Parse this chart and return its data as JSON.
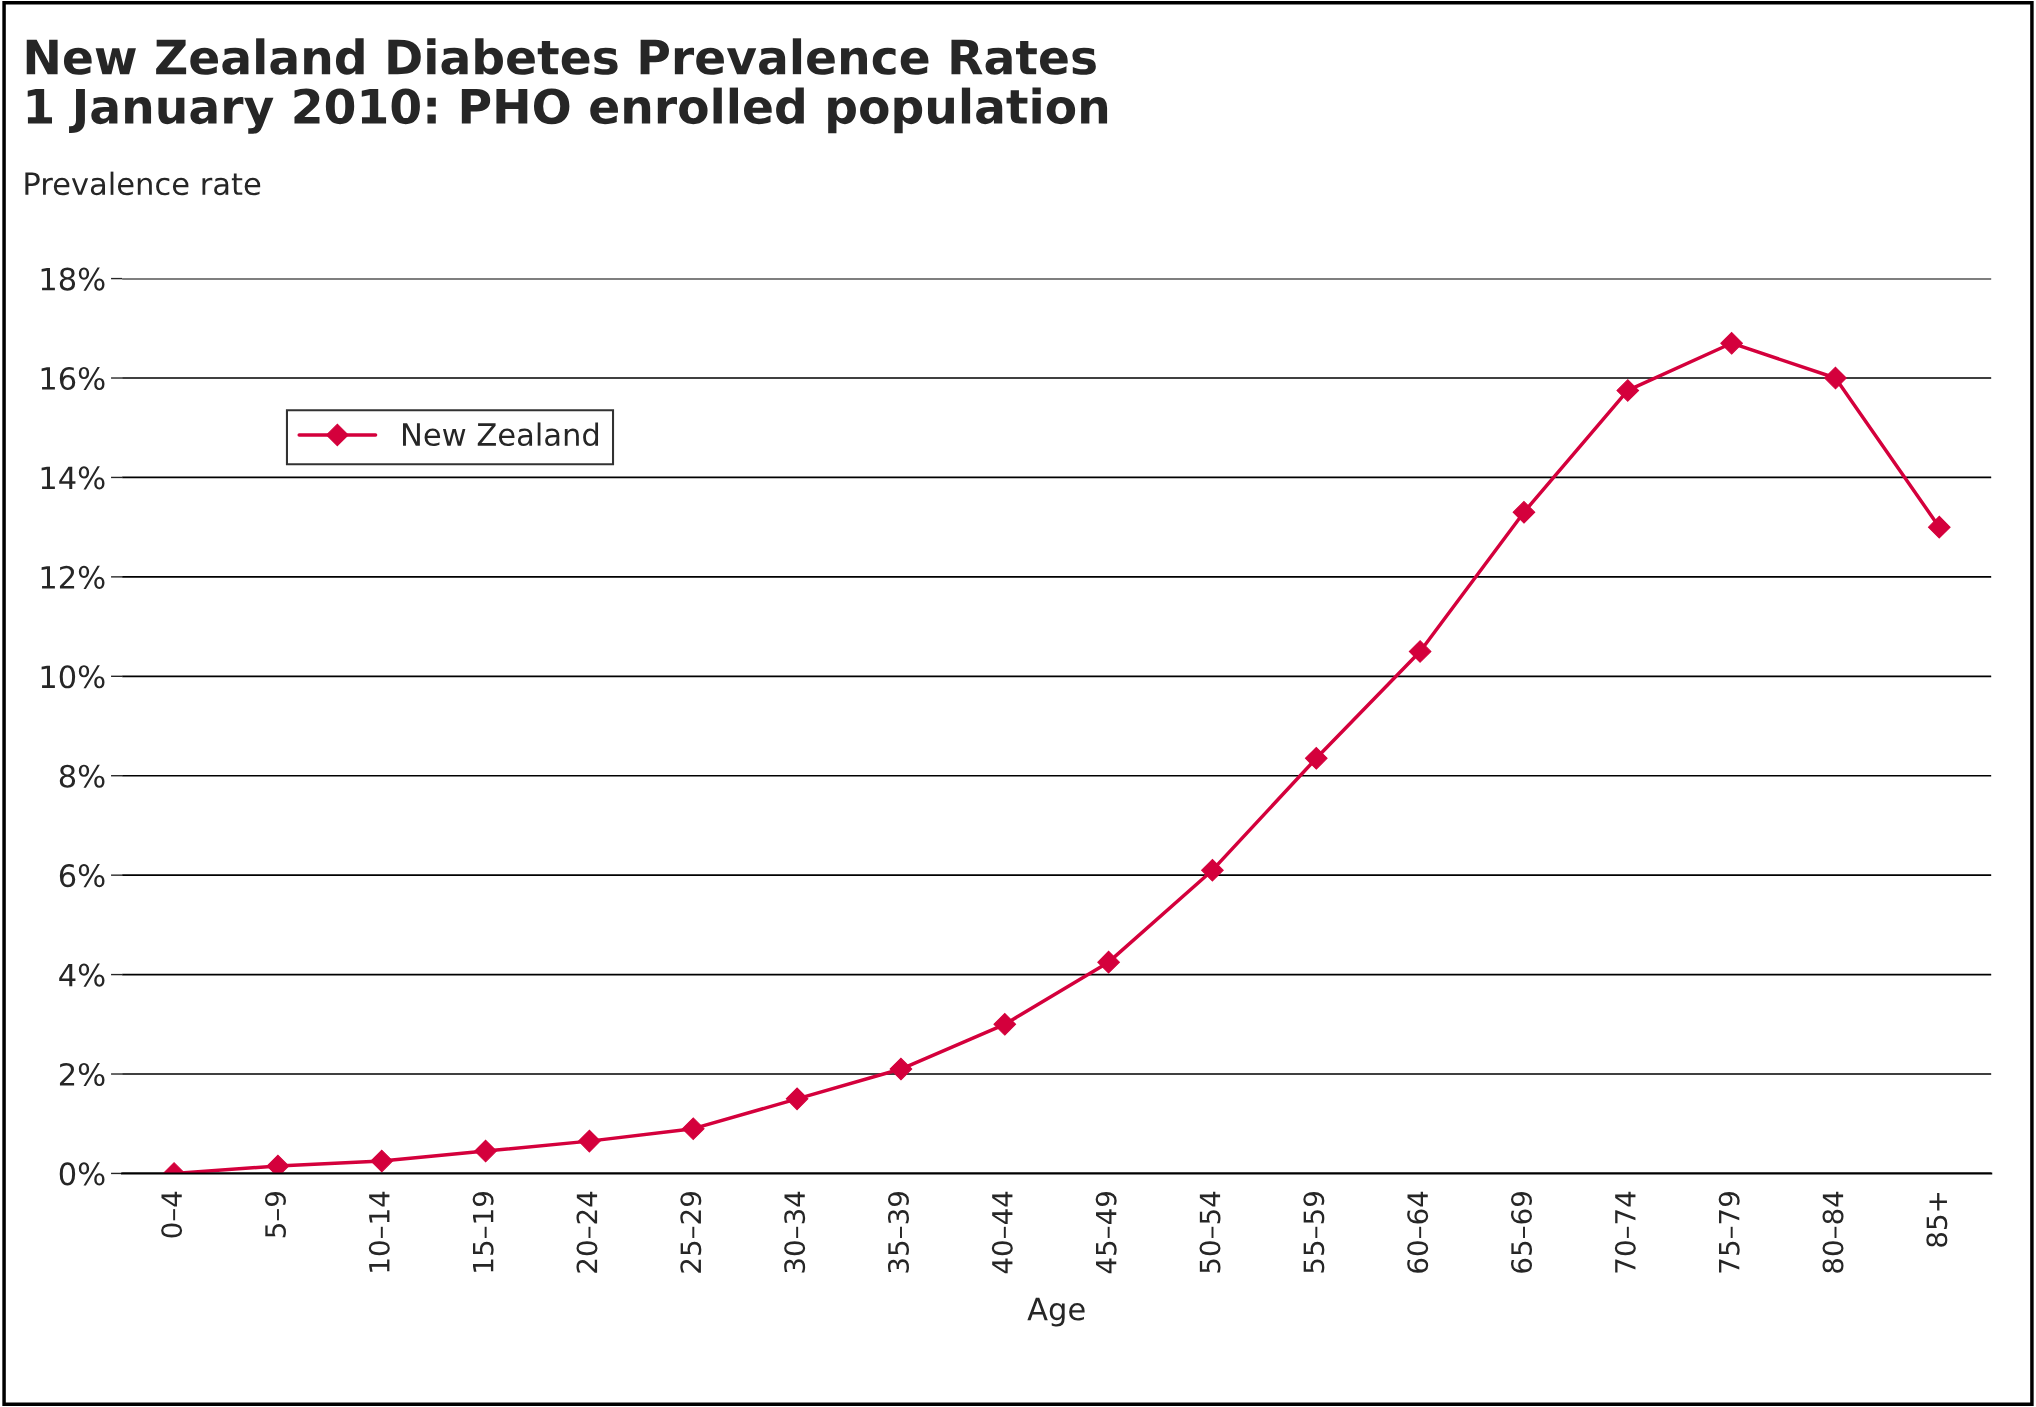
{
  "chart_data": {
    "type": "line",
    "title": "New Zealand Diabetes Prevalence Rates\n1 January 2010: PHO enrolled population",
    "ylabel": "Prevalence rate",
    "xlabel": "Age",
    "categories": [
      "0–4",
      "5–9",
      "10–14",
      "15–19",
      "20–24",
      "25–29",
      "30–34",
      "35–39",
      "40–44",
      "45–49",
      "50–54",
      "55–59",
      "60–64",
      "65–69",
      "70–74",
      "75–79",
      "80–84",
      "85+"
    ],
    "series": [
      {
        "name": "New Zealand",
        "color": "#d4003c",
        "values": [
          0,
          0.15,
          0.25,
          0.45,
          0.65,
          0.9,
          1.5,
          2.1,
          3.0,
          4.25,
          6.1,
          8.35,
          10.5,
          13.3,
          15.75,
          16.7,
          16.0,
          13.0
        ]
      }
    ],
    "ylim": [
      0,
      18
    ],
    "yticks": [
      {
        "value": 0,
        "label": "0%"
      },
      {
        "value": 2,
        "label": "2%"
      },
      {
        "value": 4,
        "label": "4%"
      },
      {
        "value": 6,
        "label": "6%"
      },
      {
        "value": 8,
        "label": "8%"
      },
      {
        "value": 10,
        "label": "10%"
      },
      {
        "value": 12,
        "label": "12%"
      },
      {
        "value": 14,
        "label": "14%"
      },
      {
        "value": 16,
        "label": "16%"
      },
      {
        "value": 18,
        "label": "18%"
      }
    ],
    "grid": "y",
    "legend": "top left",
    "marker": "diamond",
    "line_style": "solid"
  }
}
